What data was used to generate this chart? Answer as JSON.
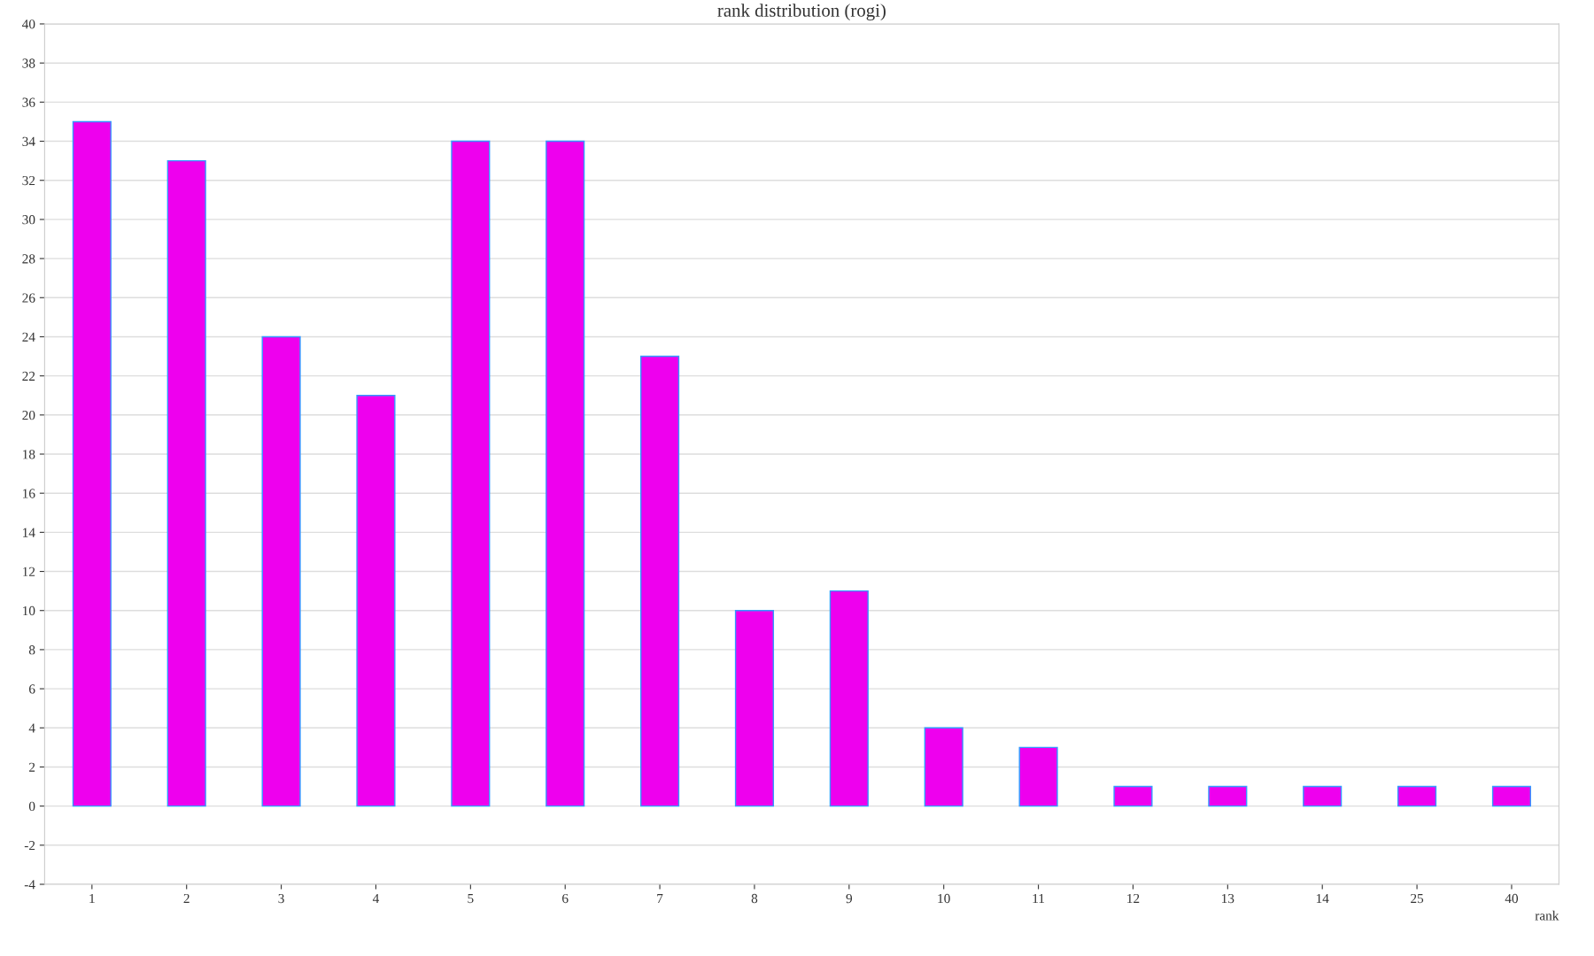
{
  "chart_data": {
    "type": "bar",
    "title": "rank distribution (rogi)",
    "xlabel": "rank",
    "categories": [
      "1",
      "2",
      "3",
      "4",
      "5",
      "6",
      "7",
      "8",
      "9",
      "10",
      "11",
      "12",
      "13",
      "14",
      "25",
      "40"
    ],
    "values": [
      35,
      33,
      24,
      21,
      34,
      34,
      23,
      10,
      11,
      4,
      3,
      1,
      1,
      1,
      1,
      1
    ],
    "color": "#ee00ee",
    "ylim": [
      -4,
      40
    ],
    "yticks": [
      -4,
      -2,
      0,
      2,
      4,
      6,
      8,
      10,
      12,
      14,
      16,
      18,
      20,
      22,
      24,
      26,
      28,
      30,
      32,
      34,
      36,
      38,
      40
    ],
    "grid": "y"
  }
}
